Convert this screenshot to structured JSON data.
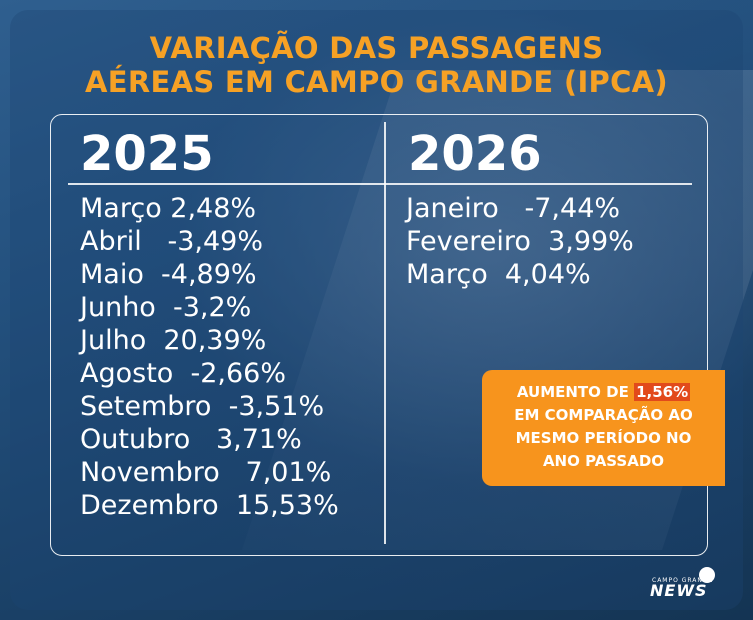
{
  "title": {
    "line1": "VARIAÇÃO DAS PASSAGENS",
    "line2": "AÉREAS EM CAMPO GRANDE (IPCA)"
  },
  "col2025": {
    "year": "2025",
    "items": [
      "Março 2,48%",
      "Abril   -3,49%",
      "Maio  -4,89%",
      "Junho  -3,2%",
      "Julho  20,39%",
      "Agosto  -2,66%",
      "Setembro  -3,51%",
      "Outubro   3,71%",
      "Novembro   7,01%",
      "Dezembro  15,53%"
    ]
  },
  "col2026": {
    "year": "2026",
    "items": [
      "Janeiro   -7,44%",
      "Fevereiro  3,99%",
      "Março  4,04%"
    ]
  },
  "note": {
    "prefix": "AUMENTO DE ",
    "highlight": "1,56%",
    "line2": "EM COMPARAÇÃO AO",
    "line3": "MESMO PERÍODO NO",
    "line4": "ANO PASSADO"
  },
  "logo": {
    "small": "CAMPO GRANDE",
    "big": "NEWS"
  },
  "colors": {
    "accent": "#f6a125",
    "note_bg": "#f7941d",
    "highlight_bg": "#e24a1b"
  }
}
